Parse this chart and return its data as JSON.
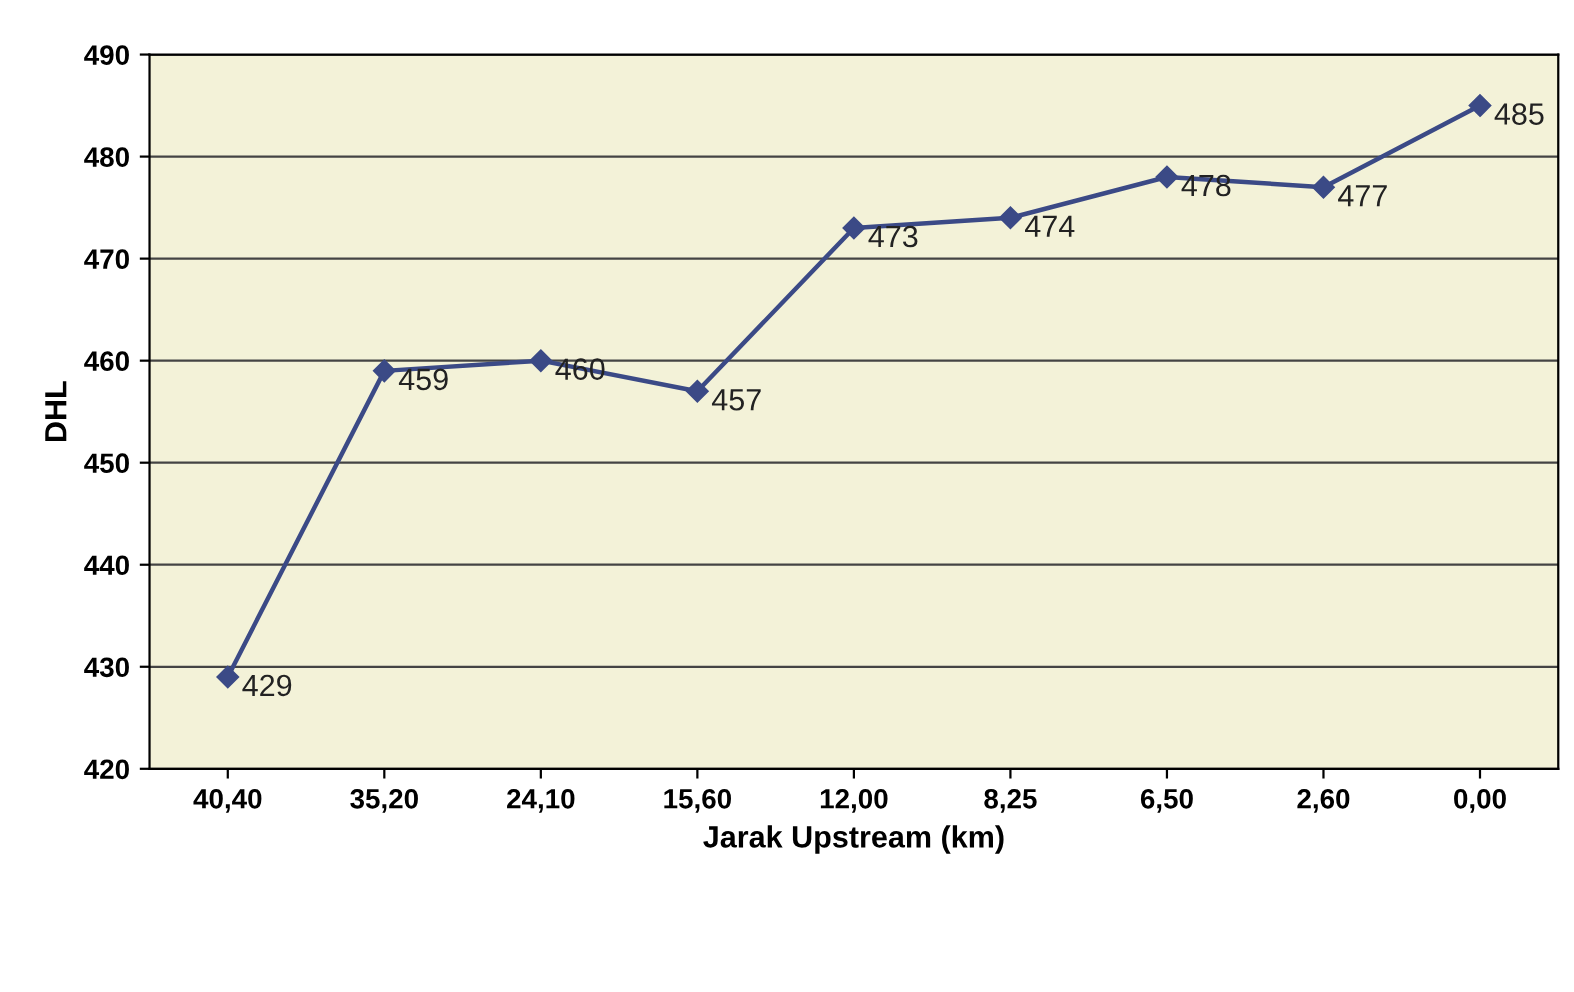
{
  "chart_data": {
    "type": "line",
    "xlabel": "Jarak Upstream (km)",
    "ylabel": "DHL",
    "categories": [
      "40,40",
      "35,20",
      "24,10",
      "15,60",
      "12,00",
      "8,25",
      "6,50",
      "2,60",
      "0,00"
    ],
    "series": [
      {
        "color": "#3b4a86",
        "values": [
          429,
          459,
          460,
          457,
          473,
          474,
          478,
          477,
          485
        ]
      }
    ],
    "ylim": [
      420,
      490
    ],
    "yticks": [
      420,
      430,
      440,
      450,
      460,
      470,
      480,
      490
    ],
    "grid": "y",
    "marker": "diamond",
    "line_style": "solid",
    "data_labels": true,
    "legend": false
  }
}
